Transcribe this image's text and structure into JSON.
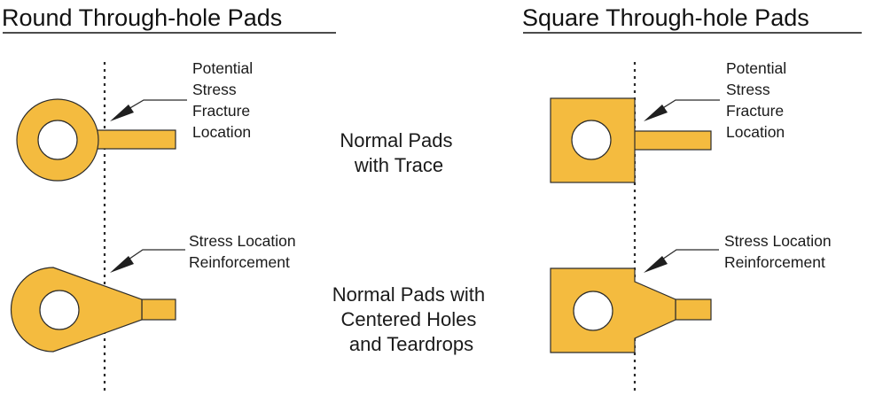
{
  "headings": {
    "round": "Round Through-hole Pads",
    "square": "Square Through-hole Pads"
  },
  "callouts": {
    "fracture": [
      "Potential",
      "Stress",
      "Fracture",
      "Location"
    ],
    "reinforcement": [
      "Stress Location",
      "Reinforcement"
    ]
  },
  "captions": {
    "normal": [
      "Normal Pads",
      "with Trace"
    ],
    "teardrop": [
      "Normal Pads with",
      "Centered Holes",
      "and Teardrops"
    ]
  },
  "colors": {
    "copper_pad": "#f4bb3f",
    "outline": "#2b2b2b",
    "drill_hole": "#ffffff"
  }
}
